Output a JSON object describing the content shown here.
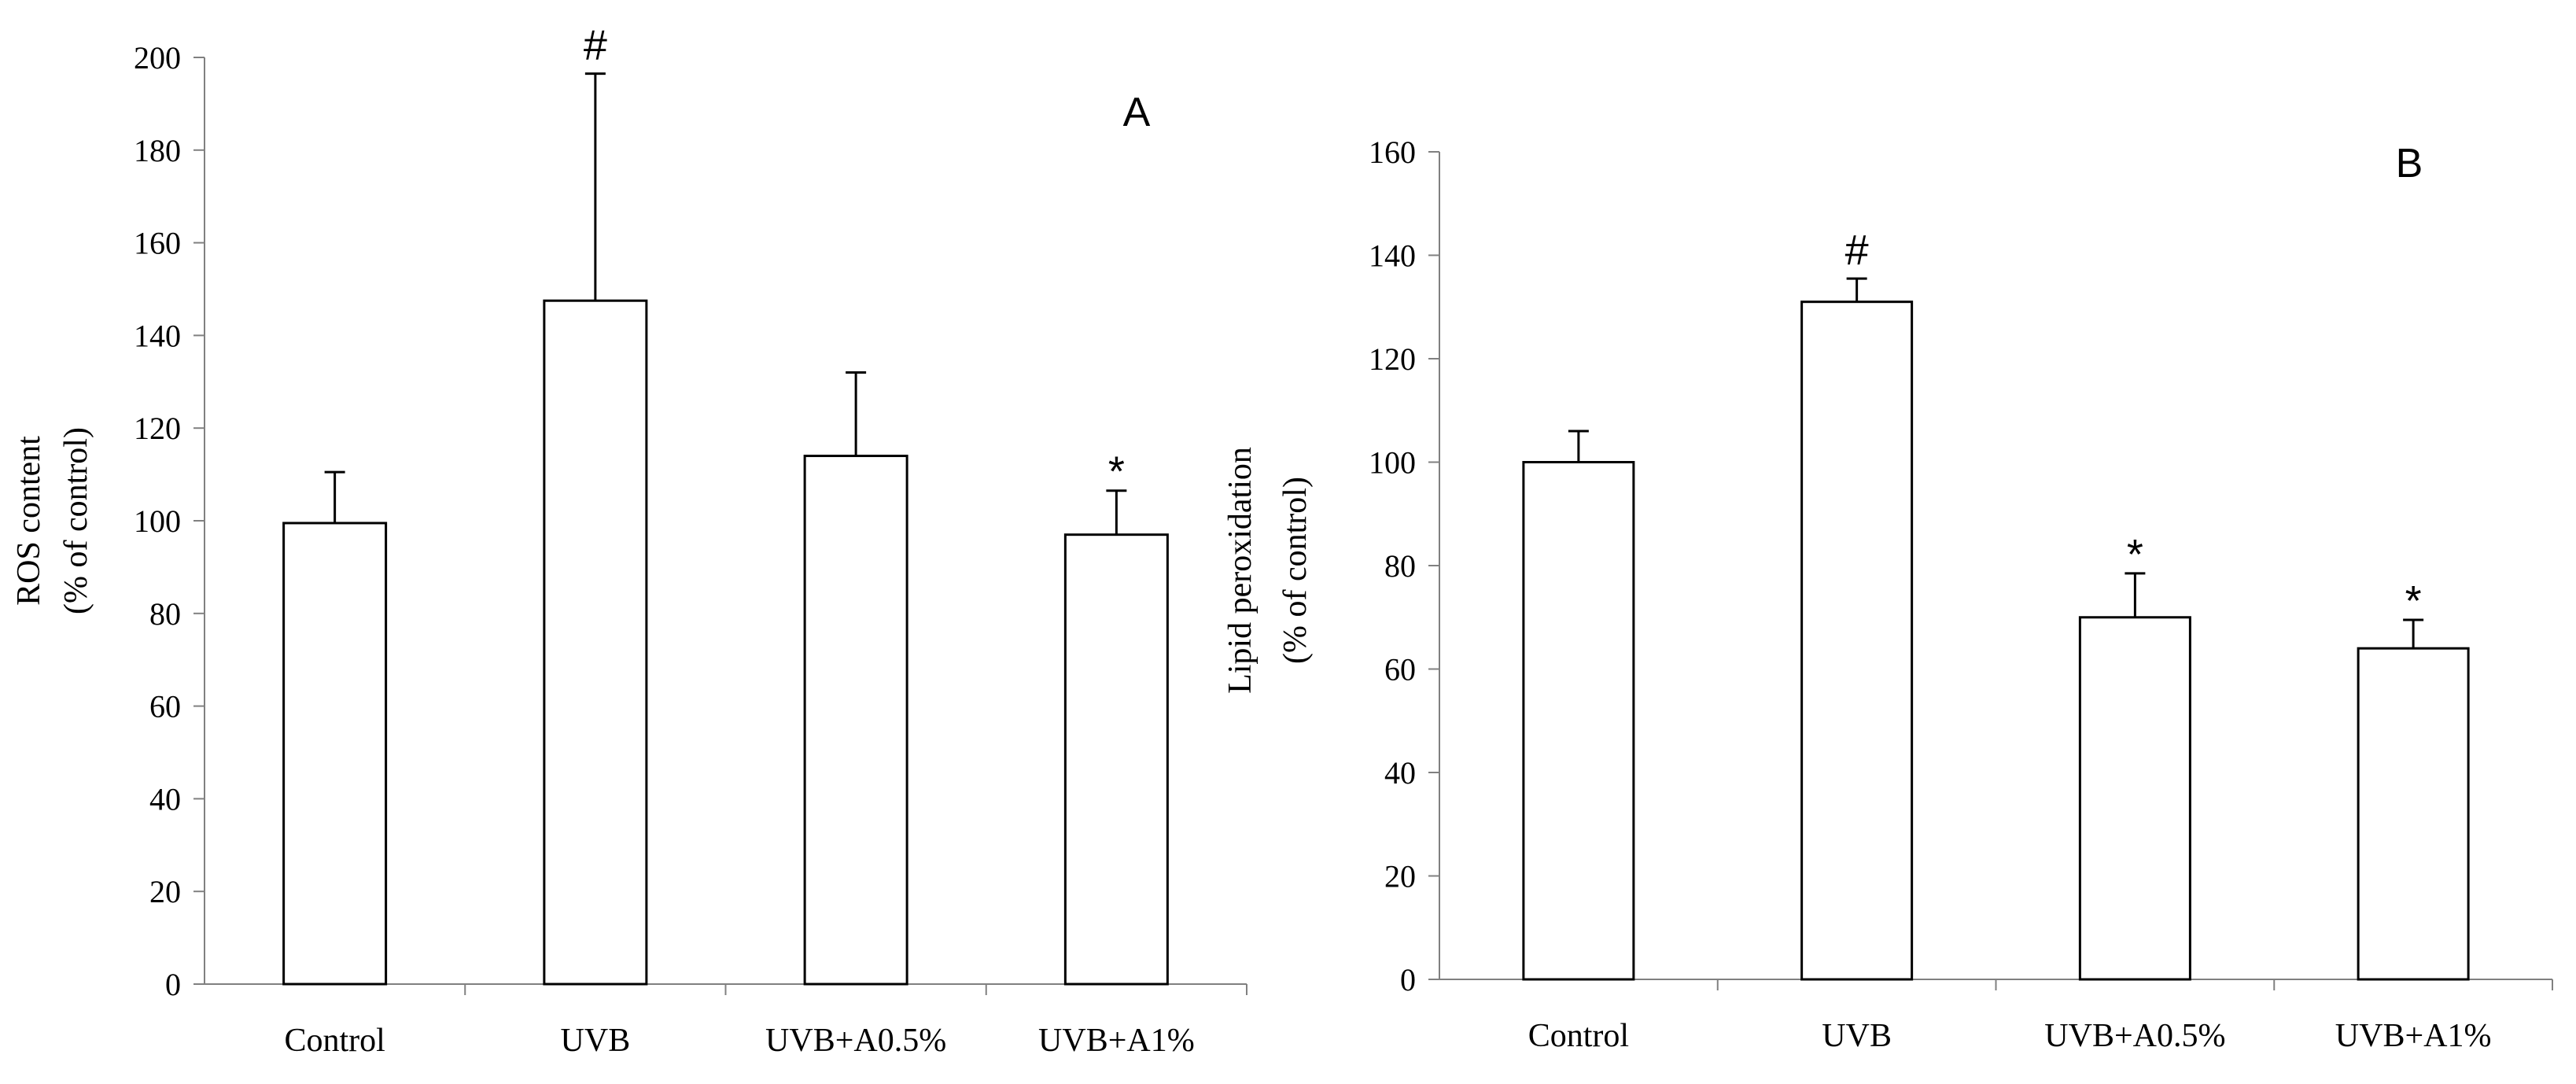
{
  "chart_data": [
    {
      "type": "bar",
      "panel_label": "A",
      "ylabel_lines": [
        "ROS content",
        "(% of control)"
      ],
      "xlabel": "",
      "categories": [
        "Control",
        "UVB",
        "UVB+A0.5%",
        "UVB+A1%"
      ],
      "values": [
        99.5,
        147.5,
        114,
        97
      ],
      "error_upper": [
        110.5,
        196.5,
        132,
        106.5
      ],
      "significance_marks": [
        "",
        "#",
        "",
        "*"
      ],
      "ylim": [
        0,
        200
      ],
      "yticks": [
        0,
        20,
        40,
        60,
        80,
        100,
        120,
        140,
        160,
        180,
        200
      ],
      "bar_fill": "#ffffff",
      "bar_stroke": "#000000",
      "axis_color": "#808080",
      "grid": false
    },
    {
      "type": "bar",
      "panel_label": "B",
      "ylabel_lines": [
        "Lipid peroxidation",
        "(% of control)"
      ],
      "xlabel": "",
      "categories": [
        "Control",
        "UVB",
        "UVB+A0.5%",
        "UVB+A1%"
      ],
      "values": [
        100,
        131,
        70,
        64
      ],
      "error_upper": [
        106,
        135.5,
        78.5,
        69.5
      ],
      "significance_marks": [
        "",
        "#",
        "*",
        "*"
      ],
      "ylim": [
        0,
        160
      ],
      "yticks": [
        0,
        20,
        40,
        60,
        80,
        100,
        120,
        140,
        160
      ],
      "bar_fill": "#ffffff",
      "bar_stroke": "#000000",
      "axis_color": "#808080",
      "grid": false
    }
  ]
}
